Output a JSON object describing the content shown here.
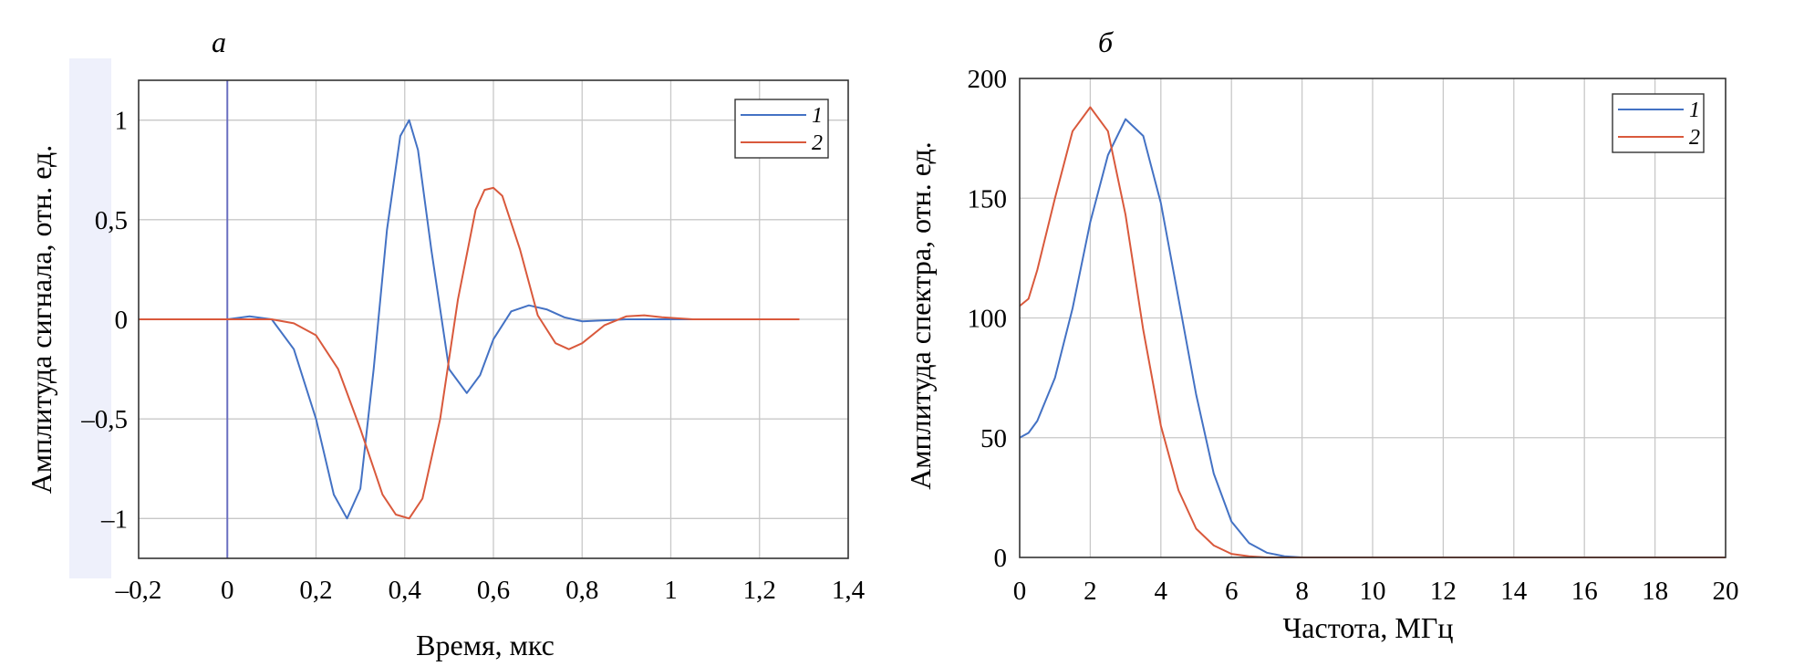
{
  "chart_data": [
    {
      "id": "a",
      "type": "line",
      "panel_label": "а",
      "xlabel": "Время, мкс",
      "ylabel": "Амплитуда сигнала, отн. ед.",
      "xlim": [
        -0.2,
        1.4
      ],
      "ylim": [
        -1.2,
        1.2
      ],
      "grid": true,
      "legend_position": "top-right",
      "x_ticks": [
        "–0,2",
        "0",
        "0,2",
        "0,4",
        "0,6",
        "0,8",
        "1",
        "1,2",
        "1,4"
      ],
      "x_tick_values": [
        -0.2,
        0,
        0.2,
        0.4,
        0.6,
        0.8,
        1.0,
        1.2,
        1.4
      ],
      "y_ticks": [
        "–1",
        "–0,5",
        "0",
        "0,5",
        "1"
      ],
      "y_tick_values": [
        -1,
        -0.5,
        0,
        0.5,
        1
      ],
      "vline_x": 0,
      "series": [
        {
          "name": "1",
          "color": "#4472c4",
          "x": [
            -0.2,
            0.0,
            0.05,
            0.1,
            0.15,
            0.2,
            0.24,
            0.27,
            0.3,
            0.33,
            0.36,
            0.39,
            0.41,
            0.43,
            0.46,
            0.5,
            0.54,
            0.57,
            0.6,
            0.64,
            0.68,
            0.72,
            0.76,
            0.8,
            0.85,
            0.9,
            0.95,
            1.0,
            1.1,
            1.2,
            1.29
          ],
          "y": [
            0,
            0.0,
            0.015,
            0.0,
            -0.15,
            -0.5,
            -0.88,
            -1.0,
            -0.85,
            -0.25,
            0.45,
            0.92,
            1.0,
            0.85,
            0.35,
            -0.25,
            -0.37,
            -0.28,
            -0.1,
            0.04,
            0.07,
            0.05,
            0.01,
            -0.01,
            -0.005,
            0.0,
            0.0,
            0.0,
            0.0,
            0.0,
            0.0
          ]
        },
        {
          "name": "2",
          "color": "#d9593c",
          "x": [
            -0.2,
            0.0,
            0.1,
            0.15,
            0.2,
            0.25,
            0.3,
            0.35,
            0.38,
            0.41,
            0.44,
            0.48,
            0.52,
            0.56,
            0.58,
            0.6,
            0.62,
            0.66,
            0.7,
            0.74,
            0.77,
            0.8,
            0.85,
            0.9,
            0.94,
            0.98,
            1.05,
            1.1,
            1.2,
            1.29
          ],
          "y": [
            0,
            0.0,
            0.0,
            -0.02,
            -0.08,
            -0.25,
            -0.55,
            -0.88,
            -0.98,
            -1.0,
            -0.9,
            -0.5,
            0.1,
            0.55,
            0.65,
            0.66,
            0.62,
            0.35,
            0.02,
            -0.12,
            -0.15,
            -0.12,
            -0.03,
            0.015,
            0.02,
            0.01,
            0.0,
            0.0,
            0.0,
            0.0
          ]
        }
      ]
    },
    {
      "id": "b",
      "type": "line",
      "panel_label": "б",
      "xlabel": "Частота, МГц",
      "ylabel": "Амплитуда спектра, отн. ед.",
      "xlim": [
        0,
        20
      ],
      "ylim": [
        0,
        200
      ],
      "grid": true,
      "legend_position": "top-right",
      "x_ticks": [
        "0",
        "2",
        "4",
        "6",
        "8",
        "10",
        "12",
        "14",
        "16",
        "18",
        "20"
      ],
      "x_tick_values": [
        0,
        2,
        4,
        6,
        8,
        10,
        12,
        14,
        16,
        18,
        20
      ],
      "y_ticks": [
        "0",
        "50",
        "100",
        "150",
        "200"
      ],
      "y_tick_values": [
        0,
        50,
        100,
        150,
        200
      ],
      "series": [
        {
          "name": "1",
          "color": "#4472c4",
          "x": [
            0,
            0.25,
            0.5,
            1.0,
            1.5,
            2.0,
            2.5,
            3.0,
            3.5,
            4.0,
            4.5,
            5.0,
            5.5,
            6.0,
            6.5,
            7.0,
            7.5,
            8.0,
            9.0,
            12,
            16,
            20
          ],
          "y": [
            50,
            52,
            57,
            75,
            104,
            140,
            168,
            183,
            176,
            148,
            108,
            68,
            35,
            15,
            6,
            2,
            0.5,
            0,
            0,
            0,
            0,
            0
          ]
        },
        {
          "name": "2",
          "color": "#d9593c",
          "x": [
            0,
            0.25,
            0.5,
            1.0,
            1.5,
            2.0,
            2.5,
            3.0,
            3.5,
            4.0,
            4.5,
            5.0,
            5.5,
            6.0,
            6.5,
            7.0,
            8.0,
            12,
            16,
            20
          ],
          "y": [
            105,
            108,
            120,
            150,
            178,
            188,
            178,
            143,
            95,
            55,
            28,
            12,
            5,
            1.5,
            0.5,
            0,
            0,
            0,
            0,
            0
          ]
        }
      ]
    }
  ]
}
